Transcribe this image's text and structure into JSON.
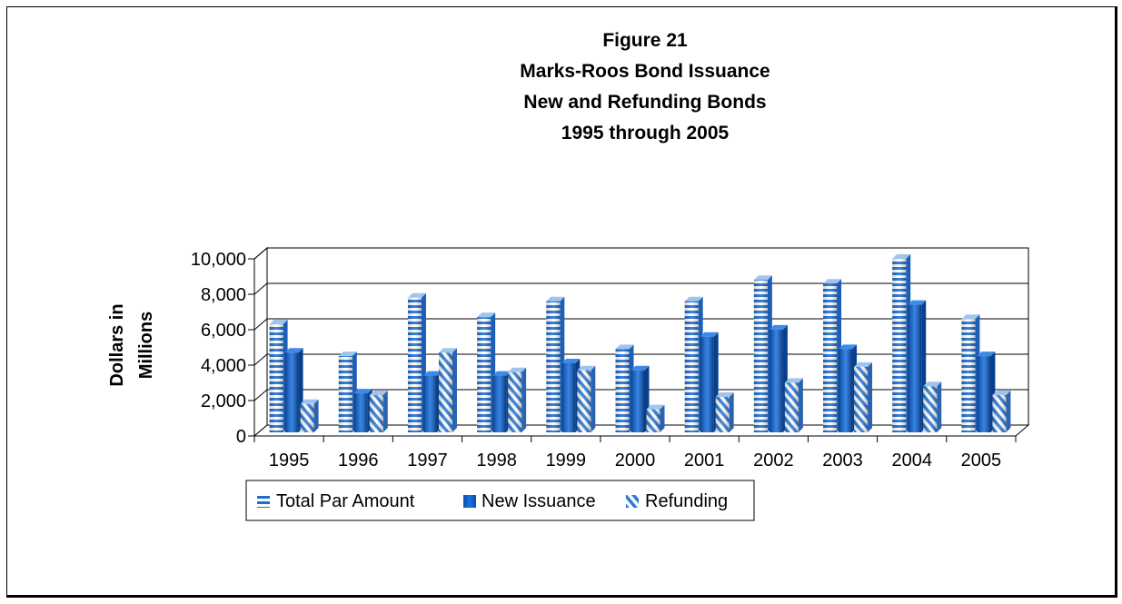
{
  "chart_data": {
    "type": "bar",
    "title_lines": [
      "Figure 21",
      "Marks-Roos Bond Issuance",
      "New and Refunding Bonds",
      "1995 through 2005"
    ],
    "ylabel_lines": [
      "Dollars in",
      "Millions"
    ],
    "xlabel": "",
    "categories": [
      "1995",
      "1996",
      "1997",
      "1998",
      "1999",
      "2000",
      "2001",
      "2002",
      "2003",
      "2004",
      "2005"
    ],
    "ylim": [
      0,
      10000
    ],
    "yticks": [
      0,
      2000,
      4000,
      6000,
      8000,
      10000
    ],
    "ytick_labels": [
      "0",
      "2,000",
      "4,000",
      "6,000",
      "8,000",
      "10,000"
    ],
    "grid": true,
    "legend_position": "bottom",
    "series": [
      {
        "name": "Total Par Amount",
        "color": "#1f6fd1",
        "pattern": "horizontal-stripes",
        "values": [
          6100,
          4300,
          7600,
          6500,
          7400,
          4700,
          7400,
          8600,
          8400,
          9800,
          6400
        ]
      },
      {
        "name": "New Issuance",
        "color": "#0a5fcf",
        "pattern": "solid",
        "values": [
          4500,
          2200,
          3200,
          3200,
          3900,
          3500,
          5400,
          5800,
          4700,
          7200,
          4300
        ]
      },
      {
        "name": "Refunding",
        "color": "#2e7bd6",
        "pattern": "diagonal-stripes",
        "values": [
          1600,
          2100,
          4500,
          3400,
          3500,
          1300,
          2000,
          2800,
          3700,
          2600,
          2100
        ]
      }
    ]
  }
}
